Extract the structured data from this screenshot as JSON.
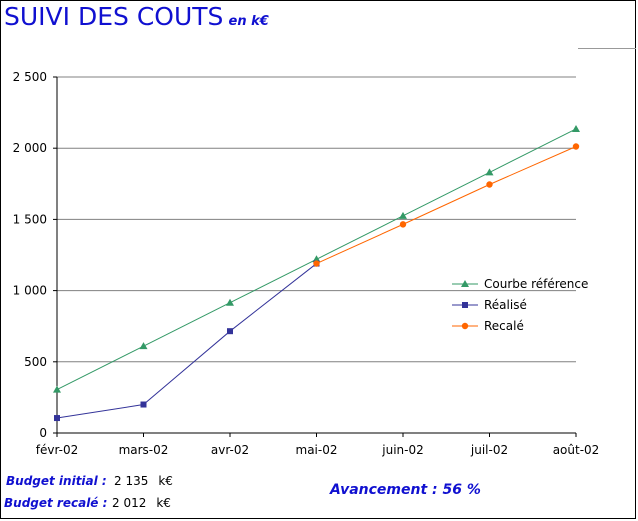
{
  "header": {
    "title": "SUIVI DES COUTS",
    "unit": "en k€"
  },
  "chart_data": {
    "type": "line",
    "title": "SUIVI DES COUTS",
    "xlabel": "",
    "ylabel": "",
    "categories": [
      "févr-02",
      "mars-02",
      "avr-02",
      "mai-02",
      "juin-02",
      "juil-02",
      "août-02"
    ],
    "ylim": [
      0,
      2500
    ],
    "yticks": [
      0,
      500,
      1000,
      1500,
      2000,
      2500
    ],
    "ytick_labels": [
      "0",
      "500",
      "1 000",
      "1 500",
      "2 000",
      "2 500"
    ],
    "grid": true,
    "legend_position": "right",
    "series": [
      {
        "name": "Courbe référence",
        "color": "#339966",
        "marker": "triangle",
        "values": [
          305,
          610,
          915,
          1220,
          1525,
          1830,
          2135
        ]
      },
      {
        "name": "Réalisé",
        "color": "#333399",
        "marker": "square",
        "values": [
          105,
          200,
          715,
          1190,
          null,
          null,
          null
        ]
      },
      {
        "name": "Recalé",
        "color": "#ff6600",
        "marker": "circle",
        "values": [
          null,
          null,
          null,
          1190,
          1465,
          1745,
          2012
        ]
      }
    ]
  },
  "footer": {
    "budget_initial_label": "Budget initial :",
    "budget_initial_value": "2 135",
    "budget_initial_unit": "k€",
    "budget_recale_label": "Budget recalé :",
    "budget_recale_value": "2 012",
    "budget_recale_unit": "k€",
    "avancement": "Avancement : 56 %"
  }
}
